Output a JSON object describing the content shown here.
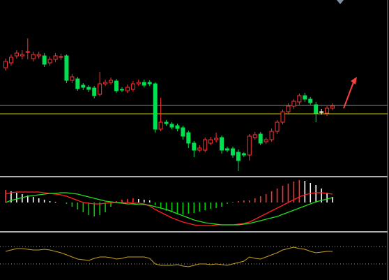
{
  "chart_data": [
    {
      "type": "candlestick",
      "up_color": "#ff3232",
      "down_color": "#00e050",
      "flat_color": "#ffffff",
      "open": [
        163,
        170,
        180,
        180,
        185,
        176,
        180,
        180,
        170,
        175,
        178,
        180,
        145,
        147,
        138,
        135,
        134,
        125,
        140,
        142,
        144,
        132,
        130,
        132,
        140,
        142,
        142,
        140,
        75,
        85,
        82,
        80,
        77,
        70,
        55,
        45,
        45,
        55,
        60,
        63,
        47,
        47,
        42,
        40,
        38,
        63,
        68,
        57,
        60,
        72,
        85,
        100,
        108,
        114,
        123,
        118,
        110,
        100,
        98,
        105
      ],
      "close": [
        172,
        178,
        184,
        182,
        186,
        182,
        182,
        168,
        175,
        180,
        179,
        145,
        150,
        133,
        135,
        132,
        123,
        140,
        142,
        145,
        130,
        131,
        135,
        140,
        142,
        138,
        140,
        75,
        85,
        83,
        78,
        76,
        65,
        55,
        45,
        48,
        60,
        60,
        62,
        45,
        45,
        38,
        30,
        38,
        65,
        67,
        55,
        60,
        72,
        85,
        100,
        108,
        115,
        123,
        118,
        113,
        98,
        100,
        105,
        108
      ],
      "high": [
        176,
        182,
        188,
        188,
        205,
        186,
        186,
        184,
        179,
        184,
        183,
        182,
        154,
        150,
        141,
        138,
        137,
        157,
        146,
        149,
        147,
        135,
        139,
        144,
        146,
        146,
        145,
        142,
        120,
        88,
        85,
        83,
        80,
        73,
        58,
        52,
        63,
        64,
        70,
        66,
        50,
        50,
        46,
        42,
        68,
        71,
        71,
        63,
        76,
        88,
        103,
        112,
        118,
        126,
        127,
        121,
        114,
        104,
        108,
        112
      ],
      "low": [
        159,
        166,
        176,
        175,
        175,
        172,
        176,
        164,
        166,
        171,
        174,
        141,
        141,
        130,
        131,
        128,
        119,
        122,
        137,
        139,
        127,
        128,
        127,
        129,
        137,
        135,
        137,
        70,
        72,
        80,
        75,
        72,
        60,
        48,
        35,
        42,
        42,
        52,
        56,
        40,
        42,
        34,
        15,
        35,
        30,
        60,
        52,
        54,
        57,
        68,
        82,
        96,
        104,
        110,
        114,
        110,
        85,
        96,
        94,
        102
      ],
      "ylim": [
        8,
        260
      ],
      "hlines": [
        {
          "value": 109,
          "color": "#8a8a8a"
        },
        {
          "value": 97,
          "color": "#c8c800"
        }
      ]
    },
    {
      "type": "macd",
      "hist_up_color": "#ff3232",
      "hist_fall_color": "#ffffff",
      "hist_neg_color": "#00d000",
      "histogram": [
        18,
        16,
        14,
        12,
        10,
        8,
        6,
        4,
        2,
        1,
        0,
        -2,
        -6,
        -10,
        -14,
        -18,
        -20,
        -18,
        -14,
        -6,
        2,
        4,
        5,
        6,
        5,
        4,
        3,
        -4,
        -8,
        -12,
        -14,
        -16,
        -17,
        -16,
        -15,
        -13,
        -11,
        -9,
        -8,
        -6,
        -2,
        1,
        2,
        3,
        3,
        6,
        9,
        12,
        16,
        20,
        24,
        27,
        30,
        32,
        31,
        28,
        25,
        20,
        14,
        8
      ],
      "series": [
        {
          "color": "#ff2020",
          "values": [
            12,
            14,
            15,
            15,
            15,
            15,
            15,
            14,
            13,
            12,
            11,
            9,
            6,
            3,
            0,
            -1,
            -2,
            -2,
            -1,
            0,
            0,
            0,
            0,
            -1,
            -1,
            -2,
            -5,
            -10,
            -14,
            -18,
            -22,
            -25,
            -28,
            -30,
            -32,
            -33,
            -33,
            -33,
            -32,
            -32,
            -32,
            -32,
            -31,
            -30,
            -28,
            -24,
            -20,
            -16,
            -12,
            -8,
            -4,
            0,
            4,
            8,
            11,
            13,
            14,
            14,
            13,
            12
          ]
        },
        {
          "color": "#20e020",
          "values": [
            0,
            3,
            5,
            7,
            9,
            10,
            11,
            12,
            13,
            13,
            14,
            14,
            13,
            12,
            10,
            8,
            6,
            4,
            2,
            1,
            0,
            -1,
            -2,
            -2,
            -3,
            -3,
            -4,
            -6,
            -8,
            -10,
            -13,
            -16,
            -19,
            -22,
            -25,
            -27,
            -29,
            -30,
            -31,
            -32,
            -32,
            -32,
            -32,
            -31,
            -30,
            -28,
            -26,
            -24,
            -22,
            -20,
            -17,
            -14,
            -11,
            -8,
            -5,
            -2,
            1,
            3,
            5,
            7
          ]
        }
      ],
      "ylim": [
        -40,
        34
      ]
    },
    {
      "type": "line",
      "series": [
        {
          "color": "#c8a020",
          "values": [
            38,
            40,
            42,
            42,
            41,
            40,
            40,
            41,
            40,
            38,
            36,
            33,
            30,
            27,
            26,
            25,
            28,
            30,
            30,
            29,
            27,
            28,
            30,
            30,
            30,
            30,
            28,
            20,
            18,
            18,
            18,
            19,
            17,
            16,
            18,
            20,
            20,
            19,
            20,
            19,
            18,
            20,
            22,
            24,
            30,
            28,
            27,
            30,
            33,
            36,
            40,
            42,
            44,
            42,
            41,
            38,
            36,
            37,
            38,
            38
          ]
        }
      ],
      "levels": [
        45,
        20
      ],
      "level_color": "#9a9a9a",
      "ylim": [
        0,
        63
      ]
    }
  ]
}
